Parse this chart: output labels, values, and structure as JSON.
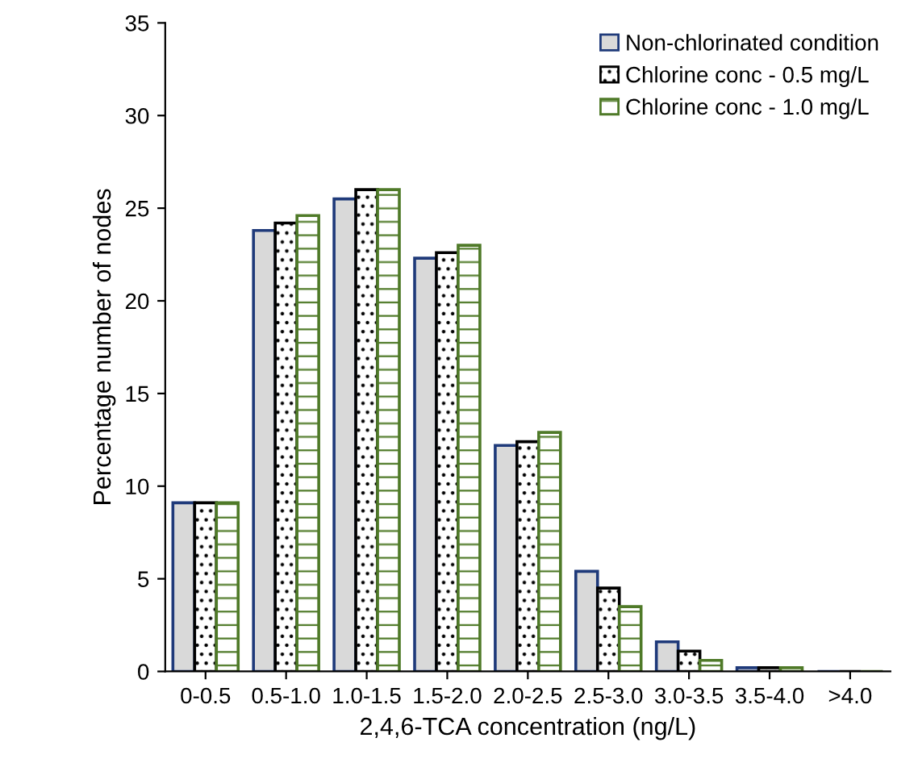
{
  "chart_data": {
    "type": "bar",
    "xlabel": "2,4,6-TCA concentration (ng/L)",
    "ylabel": "Percentage number of nodes",
    "categories": [
      "0-0.5",
      "0.5-1.0",
      "1.0-1.5",
      "1.5-2.0",
      "2.0-2.5",
      "2.5-3.0",
      "3.0-3.5",
      "3.5-4.0",
      ">4.0"
    ],
    "series": [
      {
        "name": "Non-chlorinated condition",
        "color": "#1f3a7a",
        "values": [
          9.1,
          23.8,
          25.5,
          22.3,
          12.2,
          5.4,
          1.6,
          0.2,
          0
        ]
      },
      {
        "name": "Chlorine conc - 0.5 mg/L",
        "color": "#000000",
        "values": [
          9.1,
          24.2,
          26.0,
          22.6,
          12.4,
          4.5,
          1.1,
          0.2,
          0
        ]
      },
      {
        "name": "Chlorine conc - 1.0 mg/L",
        "color": "#4f7a28",
        "values": [
          9.1,
          24.6,
          26.0,
          23.0,
          12.9,
          3.5,
          0.6,
          0.2,
          0
        ]
      }
    ],
    "ylim": [
      0,
      35
    ],
    "yticks": [
      0,
      5,
      10,
      15,
      20,
      25,
      30,
      35
    ],
    "grid": false,
    "legend": "top right"
  }
}
